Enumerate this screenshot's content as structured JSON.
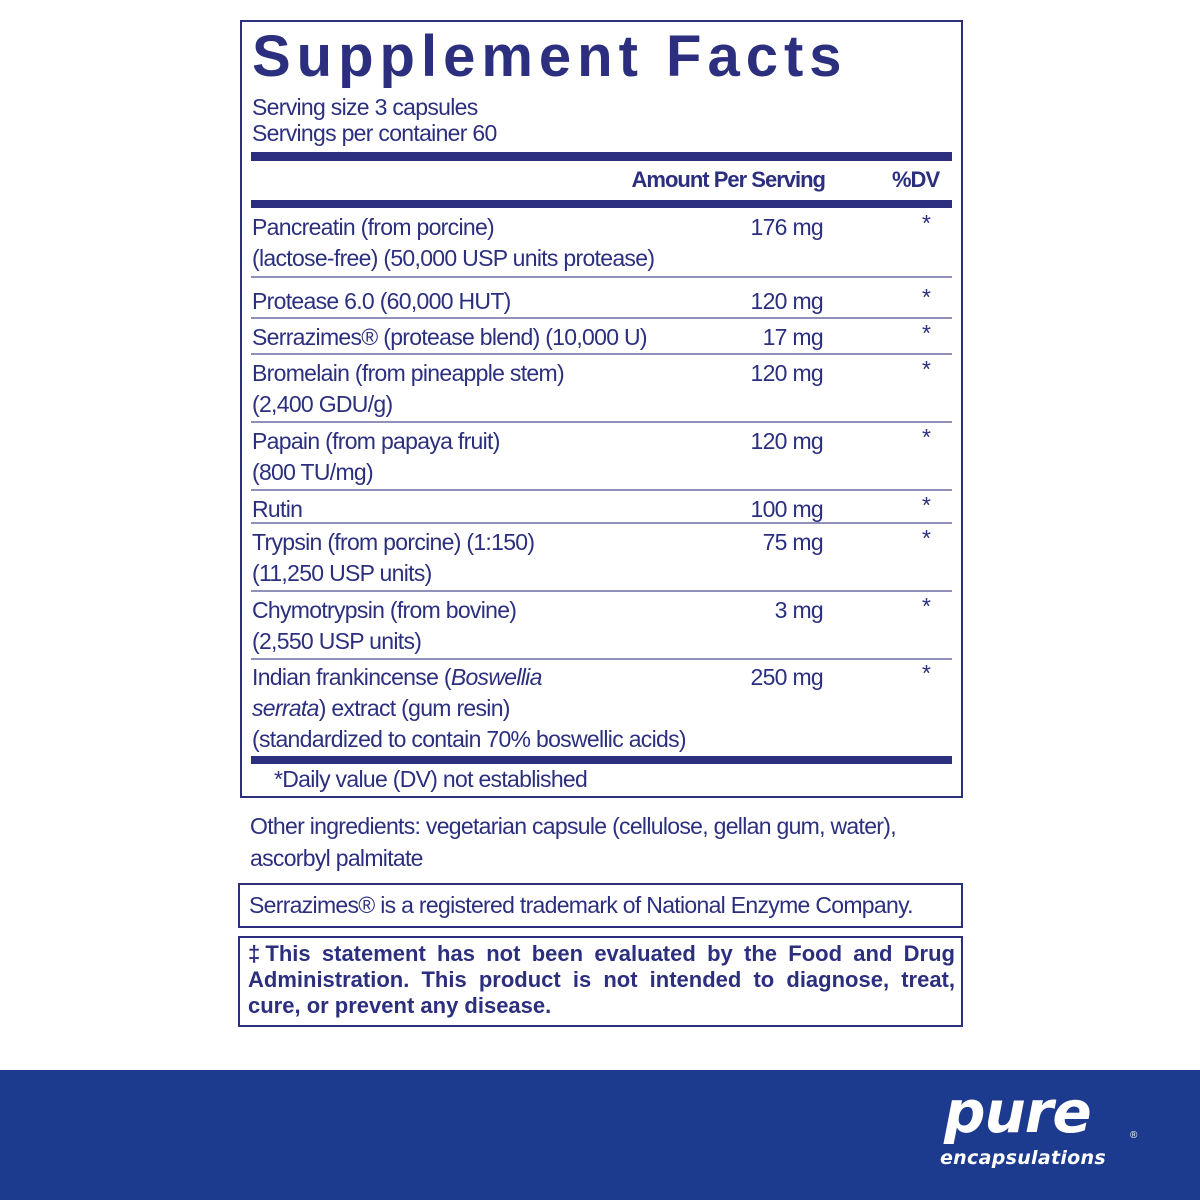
{
  "title": "Supplement Facts",
  "serving_size": "Serving size  3 capsules",
  "servings_per_container": "Servings per container  60",
  "col_amount": "Amount Per Serving",
  "col_dv": "%DV",
  "rows": [
    {
      "lines": [
        "Pancreatin (from porcine)",
        "(lactose-free) (50,000 USP units protease)"
      ],
      "amount": "176 mg",
      "dv": "*"
    },
    {
      "lines": [
        "Protease 6.0 (60,000 HUT)"
      ],
      "amount": "120 mg",
      "dv": "*"
    },
    {
      "lines": [
        "Serrazimes® (protease blend) (10,000 U)"
      ],
      "amount": "17 mg",
      "dv": "*"
    },
    {
      "lines": [
        "Bromelain (from pineapple stem)",
        "(2,400 GDU/g)"
      ],
      "amount": "120 mg",
      "dv": "*"
    },
    {
      "lines": [
        "Papain (from papaya fruit)",
        "(800 TU/mg)"
      ],
      "amount": "120 mg",
      "dv": "*"
    },
    {
      "lines": [
        "Rutin"
      ],
      "amount": "100 mg",
      "dv": "*"
    },
    {
      "lines": [
        "Trypsin (from porcine) (1:150)",
        "(11,250 USP units)"
      ],
      "amount": "75 mg",
      "dv": "*"
    },
    {
      "lines": [
        "Chymotrypsin (from bovine)",
        "(2,550 USP units)"
      ],
      "amount": "3 mg",
      "dv": "*"
    },
    {
      "lines": [
        "Indian frankincense (Boswellia",
        "serrata) extract (gum resin)",
        " (standardized to contain 70% boswellic acids)"
      ],
      "amount": "250 mg",
      "dv": "*"
    }
  ],
  "footnote": "*Daily value (DV) not established",
  "other_ingredients": [
    "Other ingredients: vegetarian capsule (cellulose, gellan gum, water),",
    "ascorbyl palmitate"
  ],
  "trademark": "Serrazimes® is a registered trademark of National Enzyme Company.",
  "disclaimer": "‡This statement has not been evaluated by the Food and Drug Administration. This product is not intended to diagnose, treat, cure, or prevent any disease.",
  "brand": {
    "name": "pure",
    "sub": "encapsulations",
    "registered": "®"
  },
  "colors": {
    "text": "#2b2f7e",
    "band": "#1c3a8e"
  }
}
